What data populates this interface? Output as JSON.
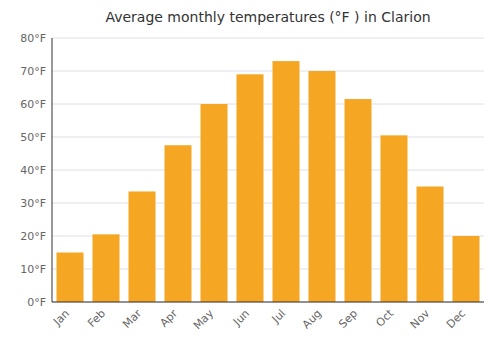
{
  "chart_data": {
    "type": "bar",
    "title": "Average monthly temperatures (°F ) in Clarion",
    "categories": [
      "Jan",
      "Feb",
      "Mar",
      "Apr",
      "May",
      "Jun",
      "Jul",
      "Aug",
      "Sep",
      "Oct",
      "Nov",
      "Dec"
    ],
    "values": [
      15,
      20.5,
      33.5,
      47.5,
      60,
      69,
      73,
      70,
      61.5,
      50.5,
      35,
      20
    ],
    "color": "#F5A623",
    "ylim": [
      0,
      80
    ],
    "yticks": [
      {
        "value": 0,
        "label": "0°F"
      },
      {
        "value": 10,
        "label": "10°F"
      },
      {
        "value": 20,
        "label": "20°F"
      },
      {
        "value": 30,
        "label": "30°F"
      },
      {
        "value": 40,
        "label": "40°F"
      },
      {
        "value": 50,
        "label": "50°F"
      },
      {
        "value": 60,
        "label": "60°F"
      },
      {
        "value": 70,
        "label": "70°F"
      },
      {
        "value": 80,
        "label": "80°F"
      }
    ],
    "grid": true
  }
}
